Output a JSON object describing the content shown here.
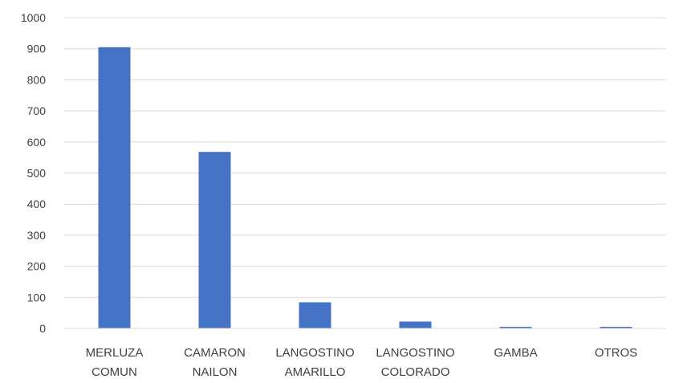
{
  "chart_data": {
    "type": "bar",
    "categories": [
      [
        "MERLUZA",
        "COMUN"
      ],
      [
        "CAMARON",
        "NAILON"
      ],
      [
        "LANGOSTINO",
        "AMARILLO"
      ],
      [
        "LANGOSTINO",
        "COLORADO"
      ],
      [
        "GAMBA"
      ],
      [
        "OTROS"
      ]
    ],
    "values": [
      905,
      568,
      84,
      22,
      5,
      5
    ],
    "title": "",
    "xlabel": "",
    "ylabel": "",
    "ylim": [
      0,
      1000
    ],
    "yticks": [
      0,
      100,
      200,
      300,
      400,
      500,
      600,
      700,
      800,
      900,
      1000
    ],
    "grid": true,
    "legend": "none",
    "colors": {
      "bar": "#4472C4",
      "grid": "#D9D9D9",
      "text": "#404040"
    }
  }
}
